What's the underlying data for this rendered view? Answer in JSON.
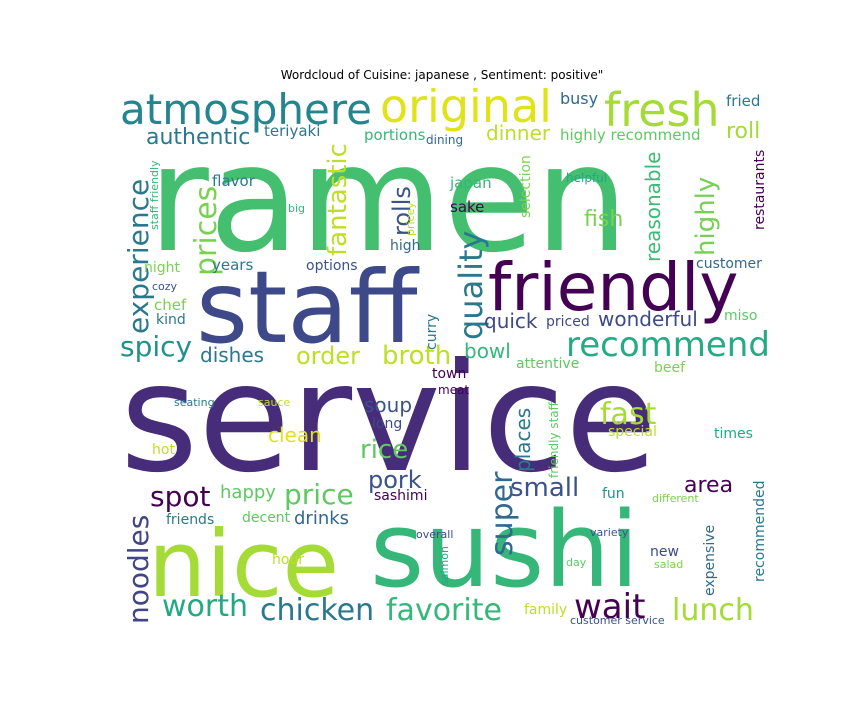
{
  "title": "Wordcloud of Cuisine: japanese , Sentiment: positive\"",
  "palette": [
    "#440154",
    "#3b528b",
    "#21918c",
    "#5ec962",
    "#fde725"
  ],
  "words": [
    {
      "text": "service",
      "color": "#472c7a"
    },
    {
      "text": "ramen",
      "color": "#44bf70"
    },
    {
      "text": "sushi",
      "color": "#35b779"
    },
    {
      "text": "staff",
      "color": "#3e4989"
    },
    {
      "text": "nice",
      "color": "#a5db36"
    },
    {
      "text": "friendly",
      "color": "#440154"
    },
    {
      "text": "atmosphere",
      "color": "#25858e"
    },
    {
      "text": "original",
      "color": "#dfe318"
    },
    {
      "text": "fresh",
      "color": "#a5db36"
    },
    {
      "text": "recommend",
      "color": "#25ab82"
    },
    {
      "text": "experience",
      "color": "#2a788e"
    },
    {
      "text": "quality",
      "color": "#2a788e"
    },
    {
      "text": "prices",
      "color": "#7ad151"
    },
    {
      "text": "fantastic",
      "color": "#bddf26"
    },
    {
      "text": "rolls",
      "color": "#3b528b"
    },
    {
      "text": "price",
      "color": "#5ec962"
    },
    {
      "text": "spot",
      "color": "#440154"
    },
    {
      "text": "super",
      "color": "#31688e"
    },
    {
      "text": "favorite",
      "color": "#35b779"
    },
    {
      "text": "chicken",
      "color": "#2a788e"
    },
    {
      "text": "worth",
      "color": "#22a884"
    },
    {
      "text": "noodles",
      "color": "#414487"
    },
    {
      "text": "wait",
      "color": "#440154"
    },
    {
      "text": "lunch",
      "color": "#a5db36"
    },
    {
      "text": "fast",
      "color": "#a5db36"
    },
    {
      "text": "spicy",
      "color": "#21918c"
    },
    {
      "text": "order",
      "color": "#bddf26"
    },
    {
      "text": "broth",
      "color": "#bddf26"
    },
    {
      "text": "highly",
      "color": "#75d054"
    },
    {
      "text": "reasonable",
      "color": "#3bbb75"
    },
    {
      "text": "roll",
      "color": "#a5db36"
    },
    {
      "text": "fish",
      "color": "#7ad151"
    },
    {
      "text": "rice",
      "color": "#5ec962"
    },
    {
      "text": "pork",
      "color": "#3b528b"
    },
    {
      "text": "small",
      "color": "#3b528b"
    },
    {
      "text": "places",
      "color": "#2a788e"
    },
    {
      "text": "authentic",
      "color": "#2a788e"
    },
    {
      "text": "dinner",
      "color": "#bddf26"
    },
    {
      "text": "wonderful",
      "color": "#3e4989"
    },
    {
      "text": "quick",
      "color": "#3e4989"
    },
    {
      "text": "dishes",
      "color": "#2a788e"
    },
    {
      "text": "bowl",
      "color": "#35b779"
    },
    {
      "text": "clean",
      "color": "#dfe318"
    },
    {
      "text": "soup",
      "color": "#3b528b"
    },
    {
      "text": "drinks",
      "color": "#31688e"
    },
    {
      "text": "happy",
      "color": "#5ec962"
    },
    {
      "text": "area",
      "color": "#440154"
    },
    {
      "text": "expensive",
      "color": "#31688e"
    },
    {
      "text": "recommended",
      "color": "#2a788e"
    },
    {
      "text": "busy",
      "color": "#31688e"
    },
    {
      "text": "fried",
      "color": "#2a788e"
    },
    {
      "text": "highly recommend",
      "color": "#5ec962"
    },
    {
      "text": "teriyaki",
      "color": "#2a788e"
    },
    {
      "text": "portions",
      "color": "#35b779"
    },
    {
      "text": "dining",
      "color": "#31688e"
    },
    {
      "text": "restaurants",
      "color": "#440154"
    },
    {
      "text": "staff friendly",
      "color": "#35b779"
    },
    {
      "text": "flavor",
      "color": "#2a788e"
    },
    {
      "text": "big",
      "color": "#35b779"
    },
    {
      "text": "pricey",
      "color": "#bddf26"
    },
    {
      "text": "japan",
      "color": "#35b779"
    },
    {
      "text": "sake",
      "color": "#440154"
    },
    {
      "text": "selection",
      "color": "#7ad151"
    },
    {
      "text": "helpful",
      "color": "#22a884"
    },
    {
      "text": "high",
      "color": "#31688e"
    },
    {
      "text": "night",
      "color": "#7ad151"
    },
    {
      "text": "years",
      "color": "#2a788e"
    },
    {
      "text": "options",
      "color": "#3b528b"
    },
    {
      "text": "customer",
      "color": "#31688e"
    },
    {
      "text": "cozy",
      "color": "#3b528b"
    },
    {
      "text": "chef",
      "color": "#7ad151"
    },
    {
      "text": "kind",
      "color": "#2a788e"
    },
    {
      "text": "curry",
      "color": "#2a788e"
    },
    {
      "text": "priced",
      "color": "#3e4989"
    },
    {
      "text": "miso",
      "color": "#5ec962"
    },
    {
      "text": "attentive",
      "color": "#5ec962"
    },
    {
      "text": "town",
      "color": "#440154"
    },
    {
      "text": "meat",
      "color": "#440154"
    },
    {
      "text": "beef",
      "color": "#7ad151"
    },
    {
      "text": "seating",
      "color": "#2a788e"
    },
    {
      "text": "sauce",
      "color": "#bddf26"
    },
    {
      "text": "long",
      "color": "#3e4989"
    },
    {
      "text": "friendly staff",
      "color": "#5ec962"
    },
    {
      "text": "special",
      "color": "#bddf26"
    },
    {
      "text": "times",
      "color": "#22a884"
    },
    {
      "text": "hot",
      "color": "#bddf26"
    },
    {
      "text": "sashimi",
      "color": "#440154"
    },
    {
      "text": "fun",
      "color": "#21918c"
    },
    {
      "text": "different",
      "color": "#7ad151"
    },
    {
      "text": "friends",
      "color": "#2a788e"
    },
    {
      "text": "decent",
      "color": "#5ec962"
    },
    {
      "text": "overall",
      "color": "#3e4989"
    },
    {
      "text": "variety",
      "color": "#3b528b"
    },
    {
      "text": "hour",
      "color": "#bddf26"
    },
    {
      "text": "salmon",
      "color": "#22a884"
    },
    {
      "text": "day",
      "color": "#5ec962"
    },
    {
      "text": "new",
      "color": "#3e4989"
    },
    {
      "text": "salad",
      "color": "#7ad151"
    },
    {
      "text": "family",
      "color": "#bddf26"
    },
    {
      "text": "customer service",
      "color": "#3b528b"
    }
  ]
}
